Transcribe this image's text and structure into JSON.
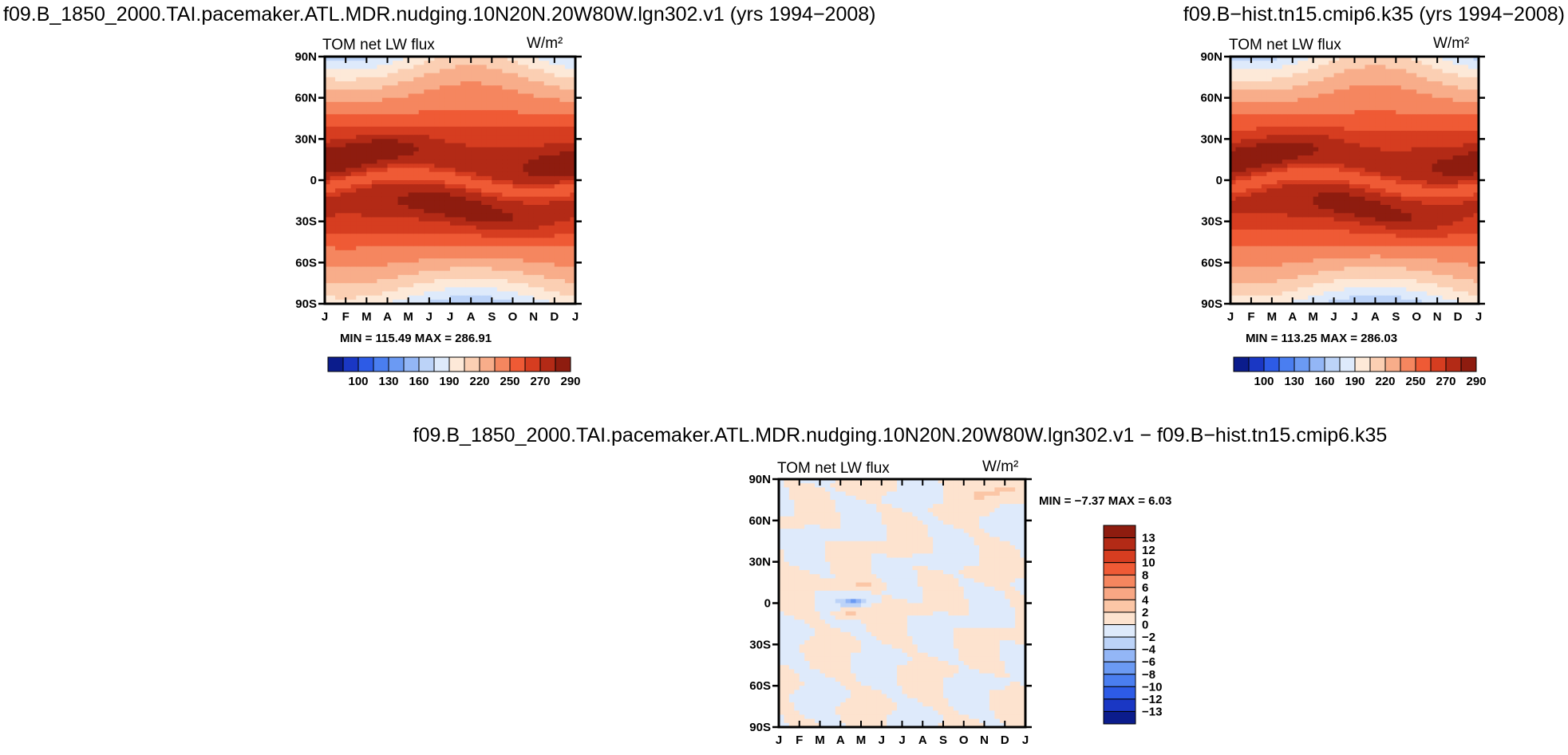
{
  "colors": {
    "bg": "#ffffff",
    "line": "#000000",
    "abs_palette": [
      "#0b1c8c",
      "#1a37c4",
      "#2d5be6",
      "#4a7ef0",
      "#6b9af3",
      "#93b6f6",
      "#bcd3f8",
      "#deeafb",
      "#fde9d8",
      "#fbcfb3",
      "#f8ad8a",
      "#f5865f",
      "#ef5a35",
      "#d63d20",
      "#b32a16",
      "#8e1c0f"
    ],
    "diff_palette": [
      "#0b1c8c",
      "#1a37c4",
      "#2d5be6",
      "#4a7ef0",
      "#6b9af3",
      "#93b6f6",
      "#bcd3f8",
      "#deeafb",
      "#fde3cf",
      "#fbc6a6",
      "#f8a784",
      "#f5865f",
      "#ef5a35",
      "#d63d20",
      "#b32a16",
      "#8e1c0f"
    ]
  },
  "chart_data": [
    {
      "type": "heatmap",
      "name": "left-panel",
      "case_title": "f09.B_1850_2000.TAI.pacemaker.ATL.MDR.nudging.10N20N.20W80W.lgn302.v1 (yrs 1994−2008)",
      "variable": "TOM net LW flux",
      "units": "W/m²",
      "x_ticks": [
        "J",
        "F",
        "M",
        "A",
        "M",
        "J",
        "J",
        "A",
        "S",
        "O",
        "N",
        "D",
        "J"
      ],
      "y_ticks": [
        "90N",
        "60N",
        "30N",
        "0",
        "30S",
        "60S",
        "90S"
      ],
      "xlim": [
        0,
        12
      ],
      "ylim": [
        -90,
        90
      ],
      "min_max_text": "MIN = 115.49  MAX = 286.91",
      "colorbar_labels": [
        "100",
        "130",
        "160",
        "190",
        "220",
        "250",
        "270",
        "290"
      ],
      "field": "climatology",
      "variant": 0
    },
    {
      "type": "heatmap",
      "name": "right-panel",
      "case_title": "f09.B−hist.tn15.cmip6.k35 (yrs 1994−2008)",
      "variable": "TOM net LW flux",
      "units": "W/m²",
      "x_ticks": [
        "J",
        "F",
        "M",
        "A",
        "M",
        "J",
        "J",
        "A",
        "S",
        "O",
        "N",
        "D",
        "J"
      ],
      "y_ticks": [
        "90N",
        "60N",
        "30N",
        "0",
        "30S",
        "60S",
        "90S"
      ],
      "xlim": [
        0,
        12
      ],
      "ylim": [
        -90,
        90
      ],
      "min_max_text": "MIN = 113.25  MAX = 286.03",
      "colorbar_labels": [
        "100",
        "130",
        "160",
        "190",
        "220",
        "250",
        "270",
        "290"
      ],
      "field": "climatology",
      "variant": 1
    },
    {
      "type": "heatmap",
      "name": "difference-panel",
      "case_title": "f09.B_1850_2000.TAI.pacemaker.ATL.MDR.nudging.10N20N.20W80W.lgn302.v1  −  f09.B−hist.tn15.cmip6.k35",
      "variable": "TOM net LW flux",
      "units": "W/m²",
      "x_ticks": [
        "J",
        "F",
        "M",
        "A",
        "M",
        "J",
        "J",
        "A",
        "S",
        "O",
        "N",
        "D",
        "J"
      ],
      "y_ticks": [
        "90N",
        "60N",
        "30N",
        "0",
        "30S",
        "60S",
        "90S"
      ],
      "xlim": [
        0,
        12
      ],
      "ylim": [
        -90,
        90
      ],
      "min_max_text": "MIN =    −7.37  MAX =    6.03",
      "colorbar_labels": [
        "13",
        "12",
        "10",
        "8",
        "6",
        "4",
        "2",
        "0",
        "−2",
        "−4",
        "−6",
        "−8",
        "−10",
        "−12",
        "−13"
      ],
      "field": "difference"
    }
  ]
}
